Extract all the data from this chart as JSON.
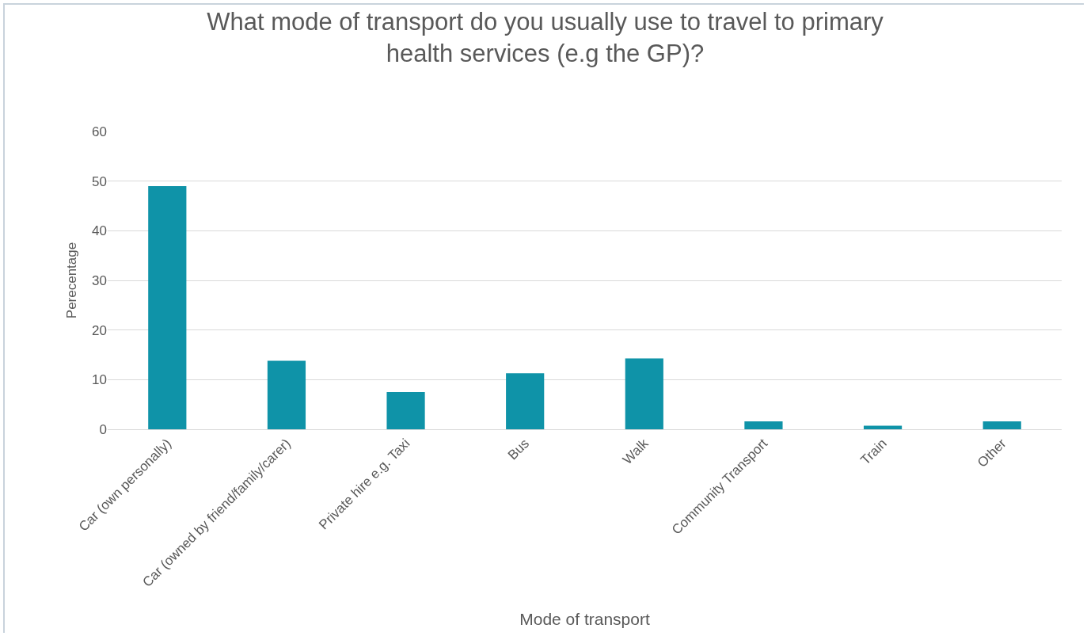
{
  "chart_data": {
    "type": "bar",
    "title": "What mode of transport do you usually use to travel to primary\nhealth services (e.g the GP)?",
    "xlabel": "Mode of transport",
    "ylabel": "Perecentage",
    "categories": [
      "Car (own personally)",
      "Car (owned by friend/family/carer)",
      "Private hire e.g. Taxi",
      "Bus",
      "Walk",
      "Community Transport",
      "Train",
      "Other"
    ],
    "values": [
      49,
      13.8,
      7.5,
      11.3,
      14.3,
      1.6,
      0.7,
      1.6
    ],
    "color": "#0f93a8",
    "ylim": [
      0,
      60
    ],
    "yticks": [
      0,
      10,
      20,
      30,
      40,
      50,
      60
    ],
    "grid": "y",
    "legend": false
  }
}
